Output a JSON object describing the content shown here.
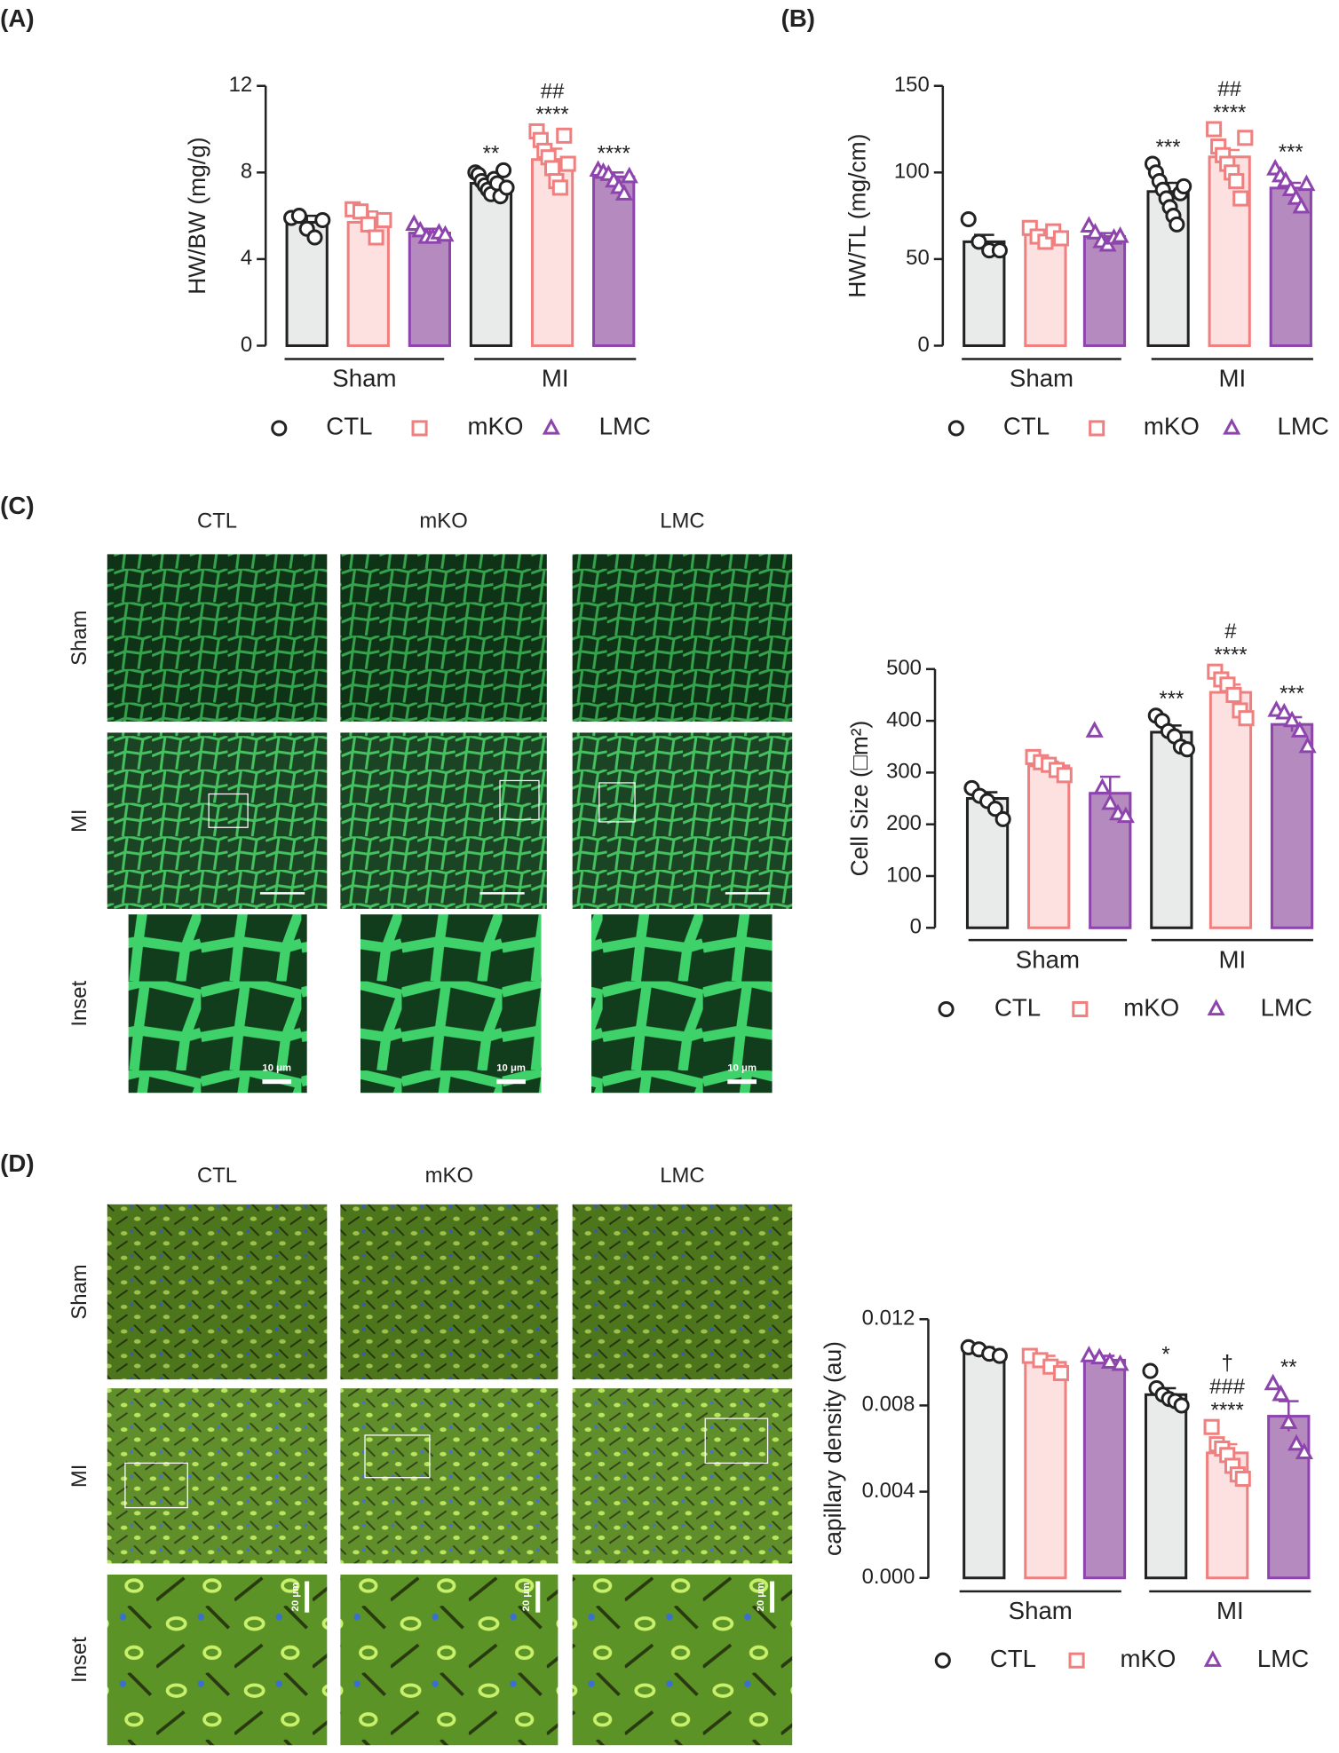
{
  "chart_data": [
    {
      "type": "bar",
      "panel_label": "(A)",
      "ylabel": "HW/BW (mg/g)",
      "ylim": [
        0,
        12
      ],
      "yticks": [
        0,
        4,
        8,
        12
      ],
      "groups": [
        "Sham",
        "MI"
      ],
      "series": [
        {
          "name": "CTL",
          "color": "#222222",
          "fill": "#e8ebe9",
          "marker": "circle",
          "values": [
            5.7,
            7.5
          ],
          "errors": [
            0.3,
            0.2
          ],
          "points": [
            [
              5.9,
              6.0,
              5.4,
              5.0,
              5.8
            ],
            [
              8.0,
              7.9,
              7.6,
              7.4,
              7.2,
              7.0,
              7.7,
              7.5,
              6.9,
              8.1,
              7.3
            ]
          ],
          "annotations": [
            null,
            [
              "**"
            ]
          ]
        },
        {
          "name": "mKO",
          "color": "#f08080",
          "fill": "#fde0e0",
          "marker": "square",
          "values": [
            5.7,
            8.6
          ],
          "errors": [
            0.5,
            0.5
          ],
          "points": [
            [
              6.3,
              6.2,
              5.6,
              5.0,
              5.8
            ],
            [
              9.9,
              9.5,
              9.0,
              8.7,
              8.2,
              7.6,
              7.3,
              9.7,
              8.4
            ]
          ],
          "annotations": [
            null,
            [
              "##",
              "****"
            ]
          ]
        },
        {
          "name": "LMC",
          "color": "#8e44ad",
          "fill": "#b58bbf",
          "marker": "triangle",
          "values": [
            5.2,
            7.8
          ],
          "errors": [
            0.2,
            0.2
          ],
          "points": [
            [
              5.6,
              5.3,
              5.0,
              5.0,
              5.2,
              5.1
            ],
            [
              8.1,
              8.0,
              7.9,
              7.6,
              7.3,
              7.0,
              7.8
            ]
          ],
          "annotations": [
            null,
            [
              "****"
            ]
          ]
        }
      ]
    },
    {
      "type": "bar",
      "panel_label": "(B)",
      "ylabel": "HW/TL (mg/cm)",
      "ylim": [
        0,
        150
      ],
      "yticks": [
        0,
        50,
        100,
        150
      ],
      "groups": [
        "Sham",
        "MI"
      ],
      "series": [
        {
          "name": "CTL",
          "color": "#222222",
          "fill": "#e8ebe9",
          "marker": "circle",
          "values": [
            60,
            89
          ],
          "errors": [
            4,
            5
          ],
          "points": [
            [
              73,
              60,
              55,
              55
            ],
            [
              105,
              100,
              95,
              90,
              85,
              80,
              75,
              70,
              88,
              92
            ]
          ],
          "annotations": [
            null,
            [
              "***"
            ]
          ]
        },
        {
          "name": "mKO",
          "color": "#f08080",
          "fill": "#fde0e0",
          "marker": "square",
          "values": [
            64,
            109
          ],
          "errors": [
            2,
            4
          ],
          "points": [
            [
              68,
              63,
              60,
              66,
              62
            ],
            [
              125,
              115,
              110,
              105,
              100,
              95,
              85,
              120
            ]
          ],
          "annotations": [
            null,
            [
              "##",
              "****"
            ]
          ]
        },
        {
          "name": "LMC",
          "color": "#8e44ad",
          "fill": "#b58bbf",
          "marker": "triangle",
          "values": [
            63,
            91
          ],
          "errors": [
            2,
            3
          ],
          "points": [
            [
              69,
              65,
              60,
              58,
              62,
              63
            ],
            [
              102,
              98,
              95,
              90,
              85,
              80,
              93
            ]
          ],
          "annotations": [
            null,
            [
              "***"
            ]
          ]
        }
      ]
    },
    {
      "type": "bar",
      "panel_label": "(C)",
      "ylabel": "Cell Size (□m²)",
      "ylim": [
        0,
        500
      ],
      "yticks": [
        0,
        100,
        200,
        300,
        400,
        500
      ],
      "groups": [
        "Sham",
        "MI"
      ],
      "series": [
        {
          "name": "CTL",
          "color": "#222222",
          "fill": "#e8ebe9",
          "marker": "circle",
          "values": [
            250,
            378
          ],
          "errors": [
            12,
            13
          ],
          "points": [
            [
              270,
              255,
              245,
              230,
              210
            ],
            [
              410,
              400,
              380,
              370,
              350,
              345
            ]
          ],
          "annotations": [
            null,
            [
              "***"
            ]
          ]
        },
        {
          "name": "mKO",
          "color": "#f08080",
          "fill": "#fde0e0",
          "marker": "square",
          "values": [
            313,
            455
          ],
          "errors": [
            8,
            15
          ],
          "points": [
            [
              330,
              320,
              315,
              305,
              295
            ],
            [
              495,
              480,
              470,
              450,
              420,
              405
            ]
          ],
          "annotations": [
            null,
            [
              "#",
              "****"
            ]
          ]
        },
        {
          "name": "LMC",
          "color": "#8e44ad",
          "fill": "#b58bbf",
          "marker": "triangle",
          "values": [
            260,
            393
          ],
          "errors": [
            32,
            14
          ],
          "points": [
            [
              380,
              270,
              240,
              220,
              215
            ],
            [
              420,
              415,
              400,
              380,
              350
            ]
          ],
          "annotations": [
            null,
            [
              "***"
            ]
          ]
        }
      ]
    },
    {
      "type": "bar",
      "panel_label": "(D)",
      "ylabel": "capillary density (au)",
      "ylim": [
        0,
        0.012
      ],
      "yticks": [
        {
          "value": 0,
          "label": "0.000"
        },
        {
          "value": 0.004,
          "label": "0.004"
        },
        {
          "value": 0.008,
          "label": "0.008"
        },
        {
          "value": 0.012,
          "label": "0.012"
        }
      ],
      "groups": [
        "Sham",
        "MI"
      ],
      "series": [
        {
          "name": "CTL",
          "color": "#222222",
          "fill": "#e8ebe9",
          "marker": "circle",
          "values": [
            0.0105,
            0.0085
          ],
          "errors": [
            0.0002,
            0.0003
          ],
          "points": [
            [
              0.0107,
              0.0106,
              0.0104,
              0.0103
            ],
            [
              0.0096,
              0.0088,
              0.0085,
              0.0083,
              0.0082,
              0.008
            ]
          ],
          "annotations": [
            null,
            [
              "*"
            ]
          ]
        },
        {
          "name": "mKO",
          "color": "#f08080",
          "fill": "#fde0e0",
          "marker": "square",
          "values": [
            0.01,
            0.0058
          ],
          "errors": [
            0.0003,
            0.0004
          ],
          "points": [
            [
              0.0103,
              0.0101,
              0.0098,
              0.0095
            ],
            [
              0.007,
              0.0062,
              0.006,
              0.0057,
              0.0052,
              0.0048,
              0.0046
            ]
          ],
          "annotations": [
            null,
            [
              "†",
              "###",
              "****"
            ]
          ]
        },
        {
          "name": "LMC",
          "color": "#8e44ad",
          "fill": "#b58bbf",
          "marker": "triangle",
          "values": [
            0.0101,
            0.0075
          ],
          "errors": [
            0.0002,
            0.0007
          ],
          "points": [
            [
              0.0103,
              0.0102,
              0.01,
              0.0099
            ],
            [
              0.009,
              0.0085,
              0.0072,
              0.0062,
              0.0058
            ]
          ],
          "annotations": [
            null,
            [
              "**"
            ]
          ]
        }
      ]
    }
  ],
  "micrographs": [
    {
      "columns": [
        "CTL",
        "mKO",
        "LMC"
      ],
      "rows": [
        "Sham",
        "MI",
        "Inset"
      ],
      "scale_label": "10 μm"
    },
    {
      "columns": [
        "CTL",
        "mKO",
        "LMC"
      ],
      "rows": [
        "Sham",
        "MI",
        "Inset"
      ],
      "scale_label": "20 μm"
    }
  ]
}
